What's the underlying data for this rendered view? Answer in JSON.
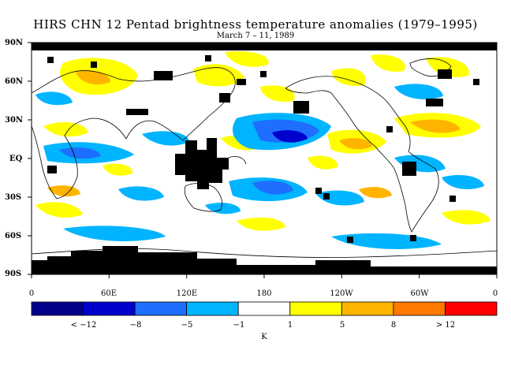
{
  "title": "HIRS CHN 12 Pentad brightness temperature anomalies (1979–1995)",
  "subtitle": "March 7 – 11, 1989",
  "lat_labels": [
    "90N",
    "60N",
    "30N",
    "EQ",
    "30S",
    "60S",
    "90S"
  ],
  "lon_labels": [
    "0",
    "60E",
    "120E",
    "180",
    "120W",
    "60W",
    "0"
  ],
  "colorbar": {
    "labels": [
      "< −12",
      "−8",
      "−5",
      "−1",
      "1",
      "5",
      "8",
      "> 12"
    ],
    "unit": "K",
    "colors": [
      "#00008b",
      "#0000cd",
      "#1e6eff",
      "#00b4ff",
      "#ffffff",
      "#ffff00",
      "#ffb400",
      "#ff7800",
      "#ff0000"
    ]
  },
  "map": {
    "type": "map",
    "projection": "equirectangular",
    "lon_range": [
      0,
      360
    ],
    "lat_range": [
      -90,
      90
    ],
    "missing_data_color": "#000000"
  }
}
